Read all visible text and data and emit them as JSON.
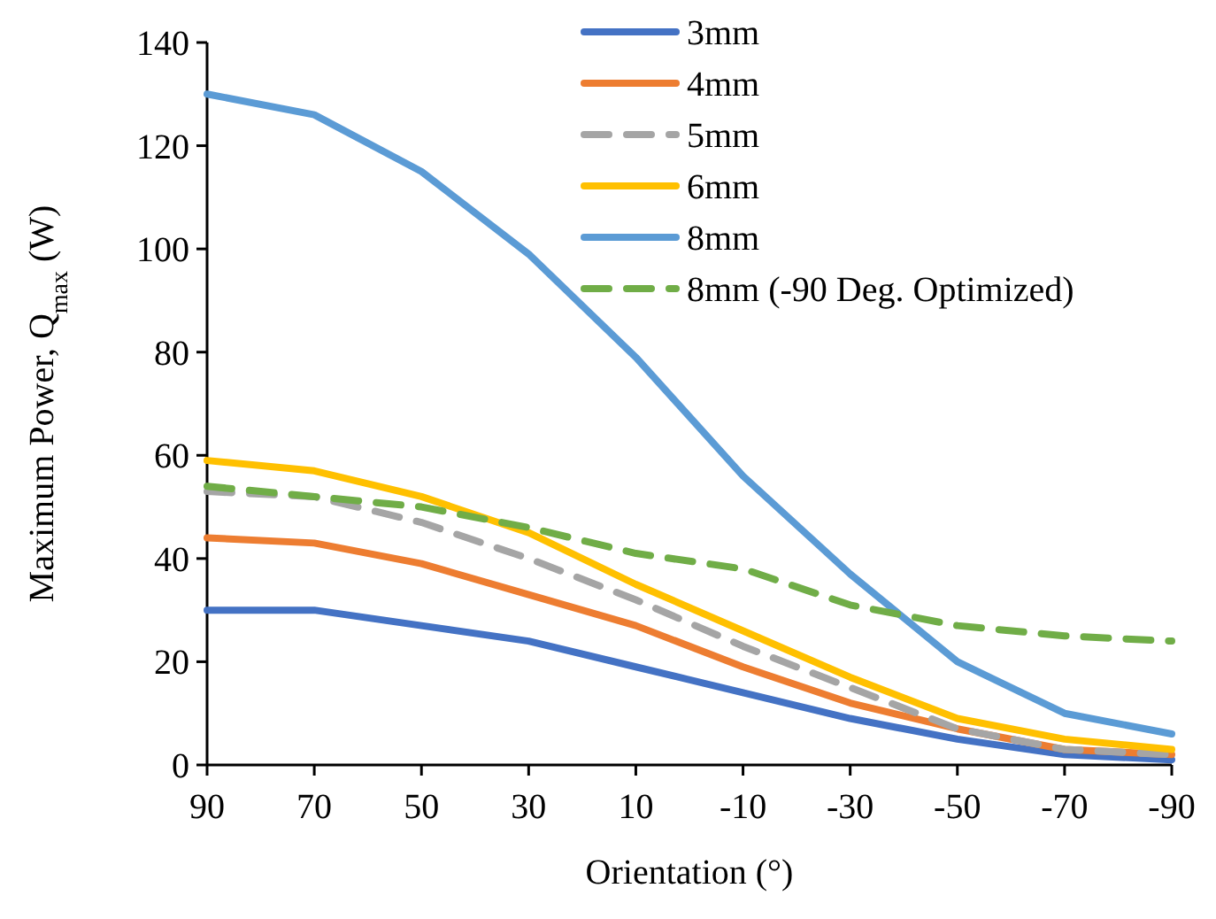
{
  "chart_data": {
    "type": "line",
    "xlabel": "Orientation (°)",
    "ylabel": "Maximum Power, Q$_{max}$ (W)",
    "categories": [
      "90",
      "70",
      "50",
      "30",
      "10",
      "-10",
      "-30",
      "-50",
      "-70",
      "-90"
    ],
    "ylim": [
      0,
      140
    ],
    "yticks": [
      0,
      20,
      40,
      60,
      80,
      100,
      120,
      140
    ],
    "grid": false,
    "legend": "top right",
    "marker": "none",
    "series": [
      {
        "name": "3mm",
        "color": "#4472c4",
        "line_style": "solid",
        "values": [
          30,
          30,
          27,
          24,
          19,
          14,
          9,
          5,
          2,
          1
        ]
      },
      {
        "name": "4mm",
        "color": "#ed7d31",
        "line_style": "solid",
        "values": [
          44,
          43,
          39,
          33,
          27,
          19,
          12,
          7,
          3,
          2
        ]
      },
      {
        "name": "5mm",
        "color": "#a5a5a5",
        "line_style": "dashed",
        "values": [
          53,
          52,
          47,
          40,
          32,
          23,
          15,
          7,
          3,
          2
        ]
      },
      {
        "name": "6mm",
        "color": "#ffc000",
        "line_style": "solid",
        "values": [
          59,
          57,
          52,
          45,
          35,
          26,
          17,
          9,
          5,
          3
        ]
      },
      {
        "name": "8mm",
        "color": "#5b9bd5",
        "line_style": "solid",
        "values": [
          130,
          126,
          115,
          99,
          79,
          56,
          37,
          20,
          10,
          6
        ]
      },
      {
        "name": "8mm (-90 Deg. Optimized)",
        "color": "#70ad47",
        "line_style": "dashed",
        "values": [
          54,
          52,
          50,
          46,
          41,
          38,
          31,
          27,
          25,
          24
        ]
      }
    ]
  }
}
